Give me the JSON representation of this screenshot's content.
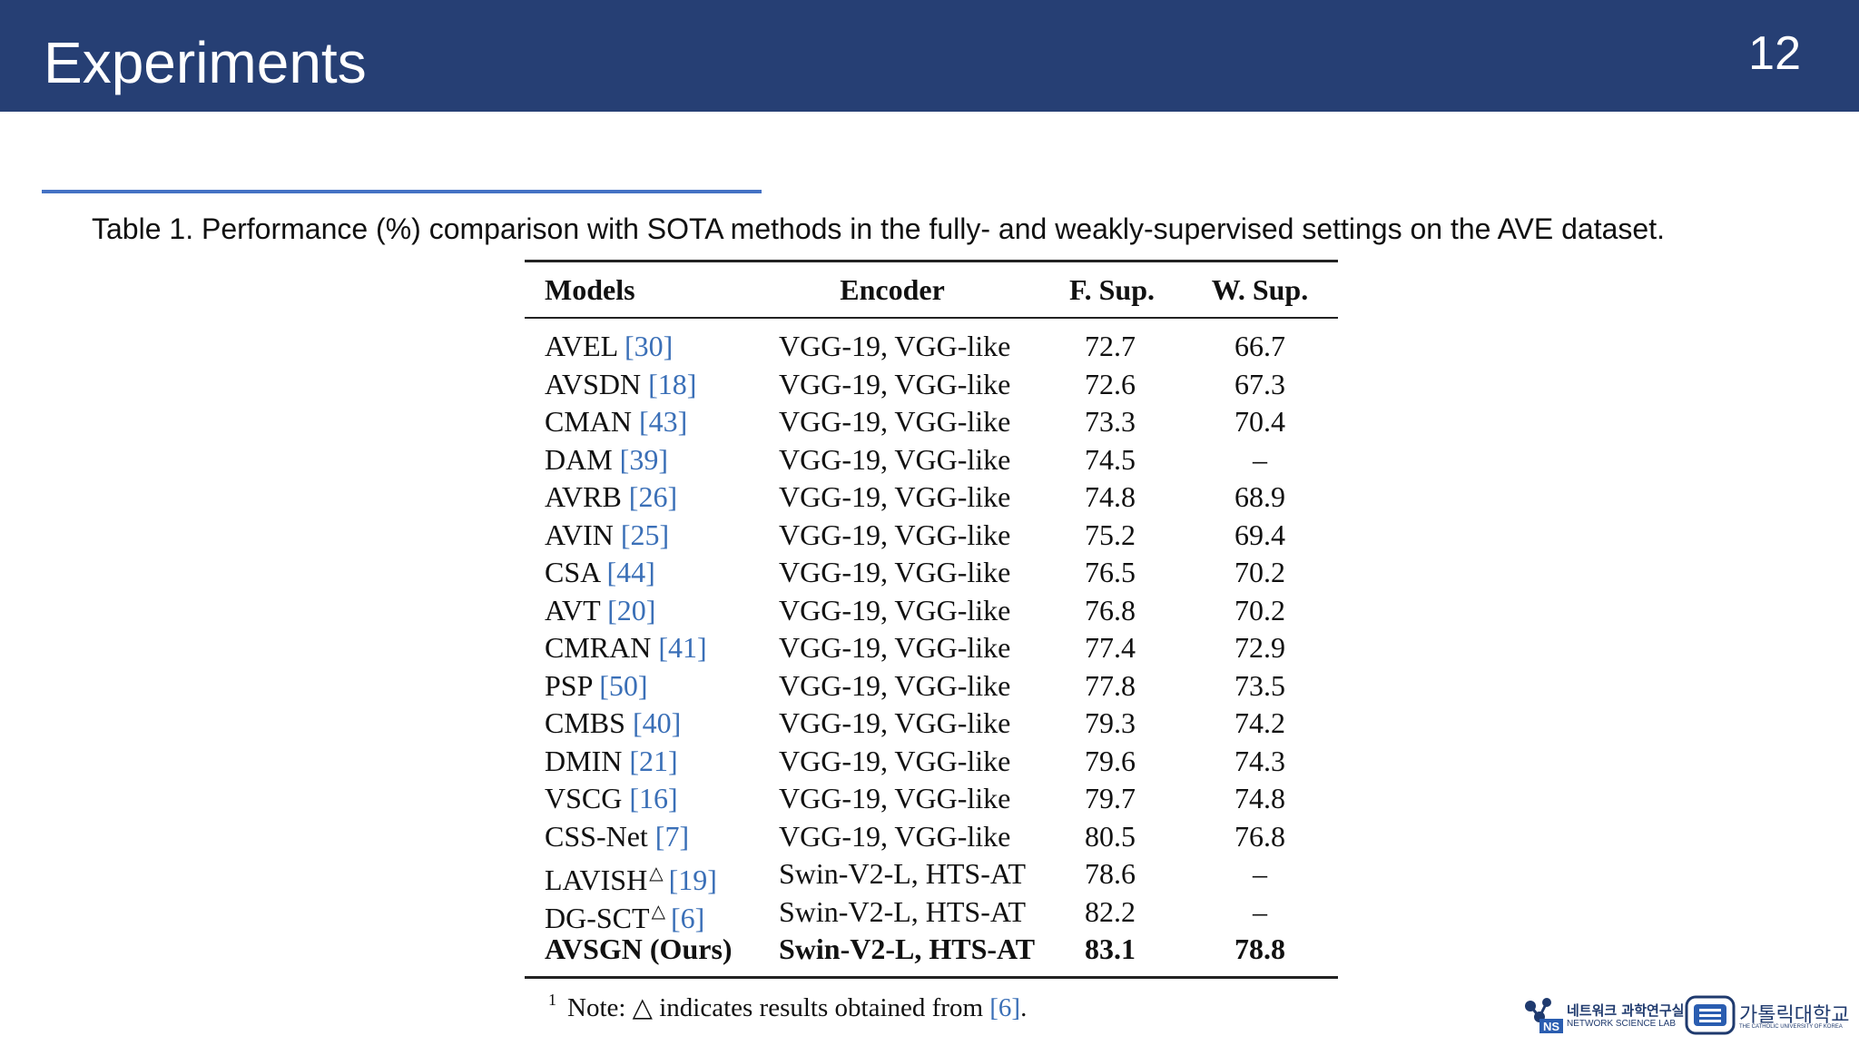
{
  "header": {
    "title": "Experiments",
    "page_number": "12"
  },
  "caption": "Table 1. Performance (%) comparison with SOTA methods in the fully- and weakly-supervised settings on the AVE dataset.",
  "table": {
    "columns": [
      "Models",
      "Encoder",
      "F. Sup.",
      "W. Sup."
    ],
    "rows": [
      {
        "model": "AVEL",
        "ref": "[30]",
        "encoder": "VGG-19, VGG-like",
        "fsup": "72.7",
        "wsup": "66.7"
      },
      {
        "model": "AVSDN",
        "ref": "[18]",
        "encoder": "VGG-19, VGG-like",
        "fsup": "72.6",
        "wsup": "67.3"
      },
      {
        "model": "CMAN",
        "ref": "[43]",
        "encoder": "VGG-19, VGG-like",
        "fsup": "73.3",
        "wsup": "70.4"
      },
      {
        "model": "DAM",
        "ref": "[39]",
        "encoder": "VGG-19, VGG-like",
        "fsup": "74.5",
        "wsup": "–"
      },
      {
        "model": "AVRB",
        "ref": "[26]",
        "encoder": "VGG-19, VGG-like",
        "fsup": "74.8",
        "wsup": "68.9"
      },
      {
        "model": "AVIN",
        "ref": "[25]",
        "encoder": "VGG-19, VGG-like",
        "fsup": "75.2",
        "wsup": "69.4"
      },
      {
        "model": "CSA",
        "ref": "[44]",
        "encoder": "VGG-19, VGG-like",
        "fsup": "76.5",
        "wsup": "70.2"
      },
      {
        "model": "AVT",
        "ref": "[20]",
        "encoder": "VGG-19, VGG-like",
        "fsup": "76.8",
        "wsup": "70.2"
      },
      {
        "model": "CMRAN",
        "ref": "[41]",
        "encoder": "VGG-19, VGG-like",
        "fsup": "77.4",
        "wsup": "72.9"
      },
      {
        "model": "PSP",
        "ref": "[50]",
        "encoder": "VGG-19, VGG-like",
        "fsup": "77.8",
        "wsup": "73.5"
      },
      {
        "model": "CMBS",
        "ref": "[40]",
        "encoder": "VGG-19, VGG-like",
        "fsup": "79.3",
        "wsup": "74.2"
      },
      {
        "model": "DMIN",
        "ref": "[21]",
        "encoder": "VGG-19, VGG-like",
        "fsup": "79.6",
        "wsup": "74.3"
      },
      {
        "model": "VSCG",
        "ref": "[16]",
        "encoder": "VGG-19, VGG-like",
        "fsup": "79.7",
        "wsup": "74.8"
      },
      {
        "model": "CSS-Net",
        "ref": "[7]",
        "encoder": "VGG-19, VGG-like",
        "fsup": "80.5",
        "wsup": "76.8"
      },
      {
        "model": "LAVISH",
        "sup": "△",
        "ref": "[19]",
        "encoder": "Swin-V2-L, HTS-AT",
        "fsup": "78.6",
        "wsup": "–"
      },
      {
        "model": "DG-SCT",
        "sup": "△",
        "ref": "[6]",
        "encoder": "Swin-V2-L, HTS-AT",
        "fsup": "82.2",
        "wsup": "–"
      },
      {
        "model": "AVSGN (Ours)",
        "encoder": "Swin-V2-L, HTS-AT",
        "fsup": "83.1",
        "wsup": "78.8",
        "bold": true
      }
    ],
    "note": {
      "marker": "1",
      "text": "Note: △ indicates results obtained from ",
      "ref": "[6]",
      "end": "."
    }
  },
  "logos": {
    "lab_korean": "네트워크 과학연구실",
    "lab_english": "NETWORK SCIENCE LAB",
    "lab_badge": "NS",
    "univ_korean": "가톨릭대학교",
    "univ_english": "THE CATHOLIC UNIVERSITY OF KOREA"
  },
  "colors": {
    "header_bg": "#263f74",
    "accent_rule": "#4472c4",
    "ref_link": "#3a6fb7"
  }
}
